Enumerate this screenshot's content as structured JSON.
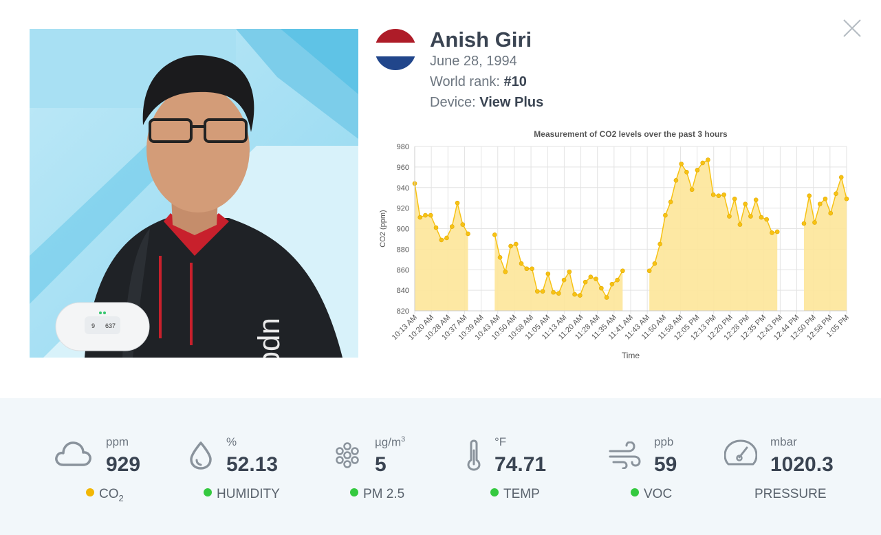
{
  "profile": {
    "name": "Anish Giri",
    "birth_date": "June 28, 1994",
    "rank_label": "World rank: ",
    "rank_value": "#10",
    "device_label": "Device: ",
    "device_value": "View Plus",
    "flag_colors": [
      "#ae1c28",
      "#ffffff",
      "#21468b"
    ],
    "device_screen": {
      "left_value": "9",
      "right_value": "637"
    }
  },
  "close_icon": "close-icon",
  "chart_data": {
    "type": "line",
    "title": "Measurement of CO2 levels over the past 3 hours",
    "xlabel": "Time",
    "ylabel": "CO2 (ppm)",
    "ylim": [
      820,
      980
    ],
    "yticks": [
      820,
      840,
      860,
      880,
      900,
      920,
      940,
      960,
      980
    ],
    "grid": true,
    "fill": "area",
    "color": "#f7c214",
    "fill_color": "#fde699",
    "tick_labels": [
      "10:13 AM",
      "10:20 AM",
      "10:28 AM",
      "10:37 AM",
      "10:39 AM",
      "10:43 AM",
      "10:50 AM",
      "10:58 AM",
      "11:05 AM",
      "11:13 AM",
      "11:20 AM",
      "11:28 AM",
      "11:35 AM",
      "11:41 AM",
      "11:43 AM",
      "11:50 AM",
      "11:58 AM",
      "12:05 PM",
      "12:13 PM",
      "12:20 PM",
      "12:28 PM",
      "12:35 PM",
      "12:43 PM",
      "12:44 PM",
      "12:50 PM",
      "12:58 PM",
      "1:05 PM"
    ],
    "values": [
      944,
      911,
      913,
      913,
      901,
      889,
      891,
      902,
      925,
      904,
      895,
      null,
      null,
      null,
      null,
      894,
      872,
      858,
      883,
      885,
      866,
      861,
      861,
      839,
      839,
      856,
      838,
      837,
      850,
      858,
      836,
      835,
      848,
      853,
      851,
      842,
      833,
      846,
      850,
      859,
      null,
      null,
      null,
      null,
      859,
      866,
      885,
      913,
      926,
      947,
      963,
      955,
      938,
      957,
      964,
      967,
      933,
      932,
      933,
      912,
      929,
      904,
      924,
      912,
      928,
      911,
      909,
      896,
      897,
      null,
      null,
      null,
      null,
      905,
      932,
      906,
      924,
      929,
      915,
      934,
      950,
      929
    ]
  },
  "metrics": [
    {
      "id": "co2",
      "icon": "cloud-icon",
      "unit": "ppm",
      "value": "929",
      "label_main": "CO",
      "label_sub": "2",
      "status_color": "#f2b705"
    },
    {
      "id": "humidity",
      "icon": "droplet-icon",
      "unit": "%",
      "value": "52.13",
      "label_main": "HUMIDITY",
      "status_color": "#34c93f"
    },
    {
      "id": "pm25",
      "icon": "particles-icon",
      "unit_main": "µg/m",
      "unit_sup": "3",
      "value": "5",
      "label_main": "PM 2.5",
      "status_color": "#34c93f"
    },
    {
      "id": "temp",
      "icon": "thermometer-icon",
      "unit": "°F",
      "value": "74.71",
      "label_main": "TEMP",
      "status_color": "#34c93f"
    },
    {
      "id": "voc",
      "icon": "wind-icon",
      "unit": "ppb",
      "value": "59",
      "label_main": "VOC",
      "status_color": "#34c93f"
    },
    {
      "id": "pressure",
      "icon": "gauge-icon",
      "unit": "mbar",
      "value": "1020.3",
      "label_main": "PRESSURE"
    }
  ]
}
